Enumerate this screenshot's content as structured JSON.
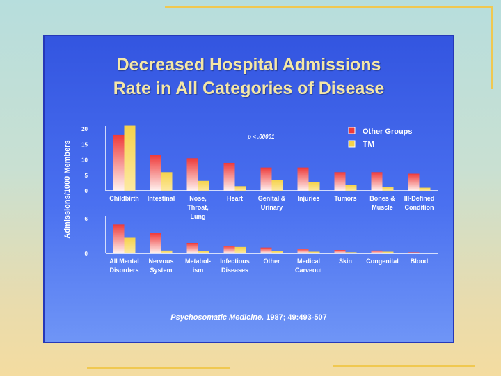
{
  "slide": {
    "title_line1": "Decreased Hospital Admissions",
    "title_line2": "Rate in All Categories of Disease",
    "citation_journal": "Psychosomatic Medicine.",
    "citation_ref": " 1987; 49:493-507"
  },
  "colors": {
    "other_groups": "#ee3a3a",
    "tm": "#f5d24a",
    "slide_bg": "#3f63ea",
    "title": "#f4e7a6"
  },
  "chart_data": [
    {
      "type": "bar",
      "title": "Decreased Hospital Admissions Rate in All Categories of Disease",
      "ylabel": "Admissions/1000 Members",
      "ylim": [
        0,
        20
      ],
      "yticks": [
        "0",
        "5",
        "10",
        "15",
        "20"
      ],
      "annotation": "p < .00001",
      "legend": [
        "Other Groups",
        "TM"
      ],
      "categories": [
        [
          "Childbirth"
        ],
        [
          "Intestinal"
        ],
        [
          "Nose,",
          "Throat,",
          "Lung"
        ],
        [
          "Heart"
        ],
        [
          "Genital &",
          "Urinary"
        ],
        [
          "Injuries"
        ],
        [
          "Tumors"
        ],
        [
          "Bones &",
          "Muscle"
        ],
        [
          "Ill-Defined",
          "Condition"
        ]
      ],
      "series": [
        {
          "name": "Other Groups",
          "values": [
            18,
            11.5,
            10.5,
            9,
            7.5,
            7.5,
            6,
            6,
            5.5
          ]
        },
        {
          "name": "TM",
          "values": [
            21,
            6,
            3.2,
            1.5,
            3.5,
            2.8,
            1.8,
            1.2,
            1
          ]
        }
      ]
    },
    {
      "type": "bar",
      "ylim": [
        0,
        6
      ],
      "yticks": [
        "0",
        "6"
      ],
      "categories": [
        [
          "All Mental",
          "Disorders"
        ],
        [
          "Nervous",
          "System"
        ],
        [
          "Metabol-",
          "ism"
        ],
        [
          "Infectious",
          "Diseases"
        ],
        [
          "Other"
        ],
        [
          "Medical",
          "Carveout"
        ],
        [
          "Skin"
        ],
        [
          "Congenital"
        ],
        [
          "Blood"
        ]
      ],
      "series": [
        {
          "name": "Other Groups",
          "values": [
            5,
            3.5,
            1.8,
            1.3,
            1,
            0.8,
            0.6,
            0.5,
            0.2
          ]
        },
        {
          "name": "TM",
          "values": [
            2.7,
            0.5,
            0.4,
            1.1,
            0.4,
            0.3,
            0.2,
            0.3,
            0.1
          ]
        }
      ]
    }
  ]
}
